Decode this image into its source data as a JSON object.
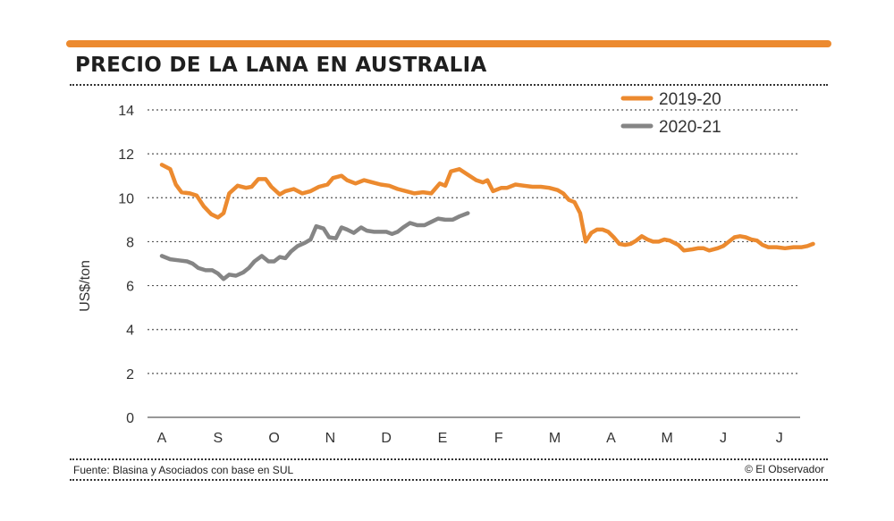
{
  "header": {
    "title": "PRECIO DE LA LANA EN AUSTRALIA"
  },
  "footer": {
    "source": "Fuente: Blasina y Asociados con base en SUL",
    "credit": "© El Observador"
  },
  "colors": {
    "accent": "#ec8a2f",
    "series_2019_20": "#ec8a2f",
    "series_2020_21": "#858585"
  },
  "chart_data": {
    "type": "line",
    "title": "PRECIO DE LA LANA EN AUSTRALIA",
    "xlabel": "",
    "ylabel": "US$/ton",
    "ylim": [
      0,
      14
    ],
    "yticks": [
      0,
      2,
      4,
      6,
      8,
      10,
      12,
      14
    ],
    "x_tick_labels": [
      "A",
      "S",
      "O",
      "N",
      "D",
      "E",
      "F",
      "M",
      "A",
      "M",
      "J",
      "J"
    ],
    "xlim": [
      0,
      11.6
    ],
    "grid": "horizontal dotted",
    "legend_position": "top-right",
    "series": [
      {
        "name": "2019-20",
        "color": "#ec8a2f",
        "points": [
          [
            0,
            11.5
          ],
          [
            0.15,
            11.3
          ],
          [
            0.25,
            10.6
          ],
          [
            0.35,
            10.25
          ],
          [
            0.5,
            10.2
          ],
          [
            0.62,
            10.1
          ],
          [
            0.75,
            9.6
          ],
          [
            0.88,
            9.25
          ],
          [
            1.0,
            9.1
          ],
          [
            1.1,
            9.3
          ],
          [
            1.2,
            10.2
          ],
          [
            1.35,
            10.55
          ],
          [
            1.5,
            10.45
          ],
          [
            1.6,
            10.5
          ],
          [
            1.72,
            10.85
          ],
          [
            1.85,
            10.85
          ],
          [
            1.95,
            10.5
          ],
          [
            2.1,
            10.15
          ],
          [
            2.2,
            10.3
          ],
          [
            2.35,
            10.4
          ],
          [
            2.5,
            10.2
          ],
          [
            2.65,
            10.3
          ],
          [
            2.8,
            10.5
          ],
          [
            2.95,
            10.6
          ],
          [
            3.05,
            10.9
          ],
          [
            3.2,
            11.0
          ],
          [
            3.3,
            10.8
          ],
          [
            3.45,
            10.65
          ],
          [
            3.6,
            10.8
          ],
          [
            3.75,
            10.7
          ],
          [
            3.9,
            10.6
          ],
          [
            4.05,
            10.55
          ],
          [
            4.2,
            10.4
          ],
          [
            4.35,
            10.3
          ],
          [
            4.5,
            10.2
          ],
          [
            4.65,
            10.25
          ],
          [
            4.8,
            10.2
          ],
          [
            4.95,
            10.65
          ],
          [
            5.05,
            10.55
          ],
          [
            5.15,
            11.2
          ],
          [
            5.3,
            11.3
          ],
          [
            5.45,
            11.05
          ],
          [
            5.6,
            10.8
          ],
          [
            5.72,
            10.7
          ],
          [
            5.8,
            10.8
          ],
          [
            5.9,
            10.3
          ],
          [
            6.05,
            10.45
          ],
          [
            6.15,
            10.45
          ],
          [
            6.3,
            10.6
          ],
          [
            6.45,
            10.55
          ],
          [
            6.6,
            10.5
          ],
          [
            6.75,
            10.5
          ],
          [
            6.9,
            10.45
          ],
          [
            7.05,
            10.35
          ],
          [
            7.15,
            10.2
          ],
          [
            7.25,
            9.9
          ],
          [
            7.35,
            9.8
          ],
          [
            7.45,
            9.3
          ],
          [
            7.55,
            8.0
          ],
          [
            7.65,
            8.4
          ],
          [
            7.75,
            8.55
          ],
          [
            7.85,
            8.55
          ],
          [
            7.95,
            8.45
          ],
          [
            8.05,
            8.2
          ],
          [
            8.15,
            7.9
          ],
          [
            8.25,
            7.85
          ],
          [
            8.35,
            7.9
          ],
          [
            8.45,
            8.05
          ],
          [
            8.55,
            8.25
          ],
          [
            8.65,
            8.1
          ],
          [
            8.75,
            8.0
          ],
          [
            8.85,
            8.0
          ],
          [
            8.95,
            8.1
          ],
          [
            9.05,
            8.05
          ],
          [
            9.2,
            7.85
          ],
          [
            9.3,
            7.6
          ],
          [
            9.45,
            7.65
          ],
          [
            9.55,
            7.7
          ],
          [
            9.65,
            7.7
          ],
          [
            9.75,
            7.6
          ],
          [
            9.9,
            7.7
          ],
          [
            10.0,
            7.8
          ],
          [
            10.1,
            8.0
          ],
          [
            10.2,
            8.2
          ],
          [
            10.3,
            8.25
          ],
          [
            10.4,
            8.2
          ],
          [
            10.5,
            8.1
          ],
          [
            10.6,
            8.05
          ],
          [
            10.7,
            7.85
          ],
          [
            10.8,
            7.75
          ],
          [
            10.95,
            7.75
          ],
          [
            11.1,
            7.7
          ],
          [
            11.25,
            7.75
          ],
          [
            11.4,
            7.75
          ],
          [
            11.5,
            7.8
          ],
          [
            11.6,
            7.9
          ]
        ]
      },
      {
        "name": "2020-21",
        "color": "#858585",
        "points": [
          [
            0,
            7.35
          ],
          [
            0.15,
            7.2
          ],
          [
            0.3,
            7.15
          ],
          [
            0.45,
            7.1
          ],
          [
            0.55,
            7.0
          ],
          [
            0.65,
            6.8
          ],
          [
            0.78,
            6.7
          ],
          [
            0.9,
            6.7
          ],
          [
            1.0,
            6.55
          ],
          [
            1.1,
            6.3
          ],
          [
            1.2,
            6.5
          ],
          [
            1.32,
            6.45
          ],
          [
            1.45,
            6.6
          ],
          [
            1.55,
            6.8
          ],
          [
            1.65,
            7.1
          ],
          [
            1.78,
            7.35
          ],
          [
            1.9,
            7.1
          ],
          [
            2.0,
            7.1
          ],
          [
            2.1,
            7.3
          ],
          [
            2.2,
            7.25
          ],
          [
            2.3,
            7.55
          ],
          [
            2.42,
            7.8
          ],
          [
            2.55,
            7.95
          ],
          [
            2.65,
            8.1
          ],
          [
            2.75,
            8.7
          ],
          [
            2.88,
            8.6
          ],
          [
            2.98,
            8.2
          ],
          [
            3.1,
            8.15
          ],
          [
            3.2,
            8.65
          ],
          [
            3.3,
            8.55
          ],
          [
            3.42,
            8.4
          ],
          [
            3.55,
            8.65
          ],
          [
            3.65,
            8.5
          ],
          [
            3.78,
            8.45
          ],
          [
            3.9,
            8.45
          ],
          [
            4.0,
            8.45
          ],
          [
            4.1,
            8.35
          ],
          [
            4.2,
            8.45
          ],
          [
            4.3,
            8.65
          ],
          [
            4.42,
            8.85
          ],
          [
            4.55,
            8.75
          ],
          [
            4.68,
            8.75
          ],
          [
            4.8,
            8.9
          ],
          [
            4.92,
            9.05
          ],
          [
            5.05,
            9.0
          ],
          [
            5.18,
            9.0
          ],
          [
            5.3,
            9.15
          ],
          [
            5.45,
            9.3
          ]
        ]
      }
    ]
  }
}
